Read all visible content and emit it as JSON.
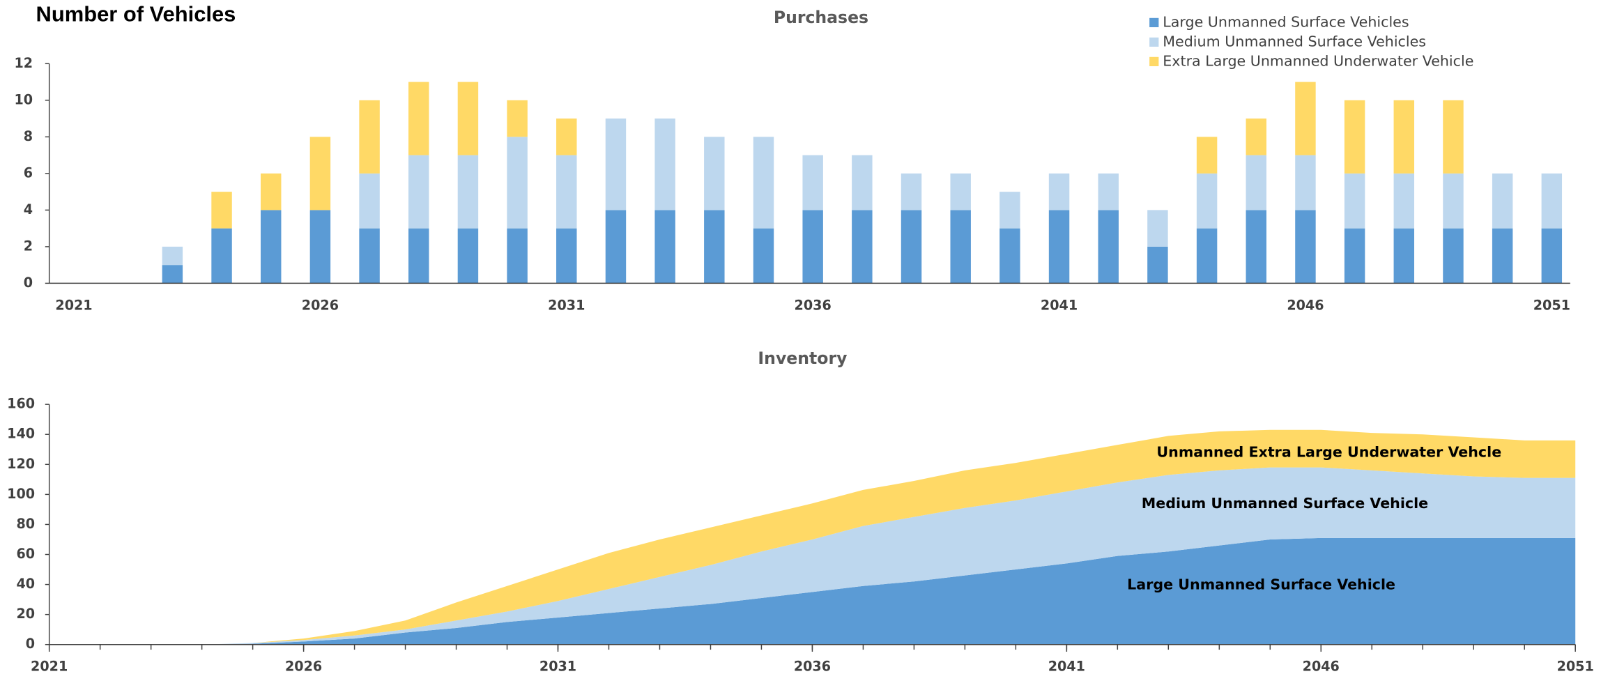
{
  "title": "Number of Vehicles",
  "chart_data": [
    {
      "type": "bar",
      "stacked": true,
      "title": "Purchases",
      "categories": [
        "2021",
        null,
        null,
        null,
        null,
        "2026",
        null,
        null,
        null,
        null,
        "2031",
        null,
        null,
        null,
        null,
        "2036",
        null,
        null,
        null,
        null,
        "2041",
        null,
        null,
        null,
        null,
        "2046",
        null,
        null,
        null,
        null,
        "2051"
      ],
      "series": [
        {
          "name": "Large Unmanned Surface Vehicles",
          "color": "#5b9bd5",
          "values": [
            0,
            0,
            1,
            3,
            4,
            4,
            3,
            3,
            3,
            3,
            3,
            4,
            4,
            4,
            3,
            4,
            4,
            4,
            4,
            3,
            4,
            4,
            2,
            3,
            4,
            4,
            3,
            3,
            3,
            3,
            3
          ]
        },
        {
          "name": "Medium Unmanned Surface Vehicles",
          "color": "#bdd7ee",
          "values": [
            0,
            0,
            1,
            0,
            0,
            0,
            3,
            4,
            4,
            5,
            4,
            5,
            5,
            4,
            5,
            3,
            3,
            2,
            2,
            2,
            2,
            2,
            2,
            3,
            3,
            3,
            3,
            3,
            3,
            3,
            3
          ]
        },
        {
          "name": "Extra Large Unmanned Underwater Vehicle",
          "color": "#ffd966",
          "values": [
            0,
            0,
            0,
            2,
            2,
            4,
            4,
            4,
            4,
            2,
            2,
            0,
            0,
            0,
            0,
            0,
            0,
            0,
            0,
            0,
            0,
            0,
            0,
            2,
            2,
            4,
            4,
            4,
            4,
            0,
            0
          ]
        }
      ],
      "ylim": [
        0,
        12
      ],
      "yticks": [
        0,
        2,
        4,
        6,
        8,
        10,
        12
      ],
      "legend": "upper right"
    },
    {
      "type": "area",
      "stacked": true,
      "title": "Inventory",
      "x": [
        2021,
        2022,
        2023,
        2024,
        2025,
        2026,
        2027,
        2028,
        2029,
        2030,
        2031,
        2032,
        2033,
        2034,
        2035,
        2036,
        2037,
        2038,
        2039,
        2040,
        2041,
        2042,
        2043,
        2044,
        2045,
        2046,
        2047,
        2048,
        2049,
        2050,
        2051
      ],
      "series": [
        {
          "name": "Large Unmanned Surface Vehicle",
          "color": "#5b9bd5",
          "values": [
            0,
            0,
            0,
            0,
            0.5,
            2,
            4,
            8,
            11,
            15,
            18,
            21,
            24,
            27,
            31,
            35,
            39,
            42,
            46,
            50,
            54,
            59,
            62,
            66,
            70,
            71,
            71,
            71,
            71,
            71,
            71
          ]
        },
        {
          "name": "Medium Unmanned Surface Vehicle",
          "color": "#bdd7ee",
          "values": [
            0,
            0,
            0,
            0,
            0.5,
            1,
            2,
            2,
            5,
            7,
            11,
            16,
            21,
            26,
            31,
            35,
            40,
            43,
            45,
            46,
            48,
            49,
            51,
            50,
            48,
            47,
            45,
            43,
            41,
            40,
            40
          ]
        },
        {
          "name": "Unmanned Extra Large Underwater Vehcle",
          "color": "#ffd966",
          "values": [
            0,
            0,
            0,
            0,
            0,
            1,
            3,
            6,
            12,
            17,
            21,
            24,
            25,
            25,
            24,
            24,
            24,
            24,
            25,
            25,
            25,
            25,
            26,
            26,
            25,
            25,
            25,
            26,
            26,
            25,
            25
          ]
        }
      ],
      "xlim": [
        2021,
        2051
      ],
      "xticks": [
        2021,
        2026,
        2031,
        2036,
        2041,
        2046,
        2051
      ],
      "ylim": [
        0,
        160
      ],
      "yticks": [
        0,
        20,
        40,
        60,
        80,
        100,
        120,
        140,
        160
      ]
    }
  ]
}
